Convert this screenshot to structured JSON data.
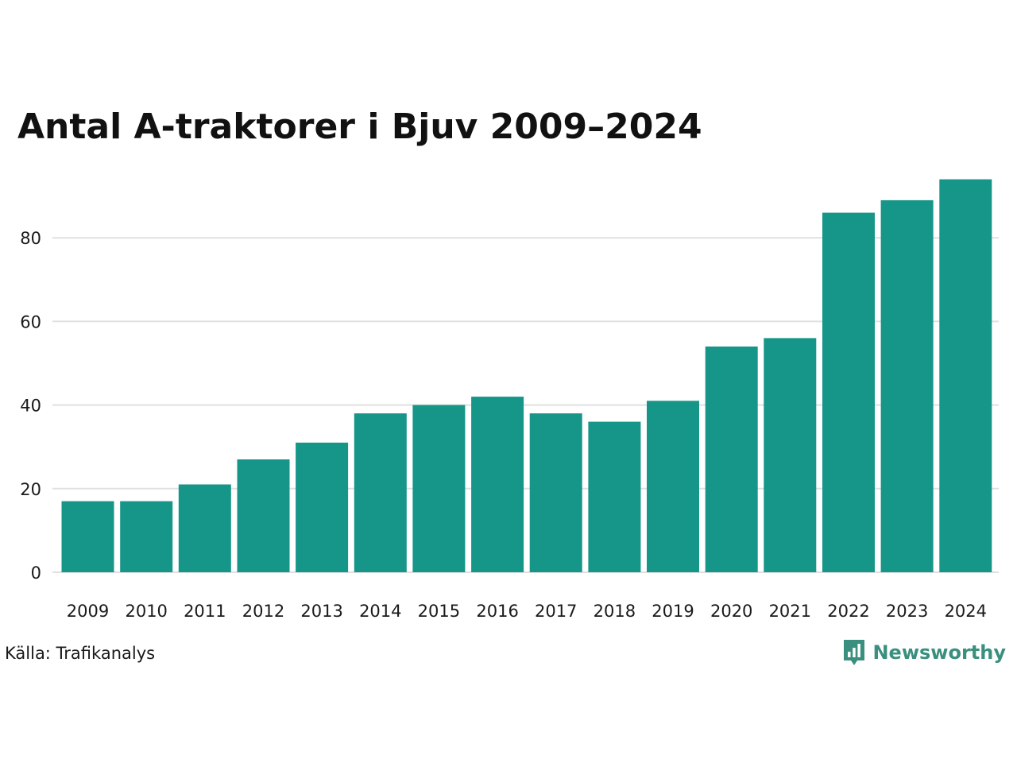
{
  "chart_data": {
    "type": "bar",
    "title": "Antal A-traktorer i Bjuv 2009–2024",
    "categories": [
      "2009",
      "2010",
      "2011",
      "2012",
      "2013",
      "2014",
      "2015",
      "2016",
      "2017",
      "2018",
      "2019",
      "2020",
      "2021",
      "2022",
      "2023",
      "2024"
    ],
    "values": [
      17,
      17,
      21,
      27,
      31,
      38,
      40,
      42,
      38,
      36,
      41,
      54,
      56,
      86,
      89,
      94
    ],
    "y_ticks": [
      "0",
      "20",
      "40",
      "60",
      "80"
    ],
    "ylim": [
      0,
      100
    ],
    "xlabel": "",
    "ylabel": "",
    "grid": true,
    "bar_color": "#159688",
    "grid_color": "#e0e0e0"
  },
  "source": "Källa: Trafikanalys",
  "brand": {
    "name": "Newsworthy",
    "icon": "newsworthy-logo-icon",
    "color": "#3a8f7f"
  }
}
